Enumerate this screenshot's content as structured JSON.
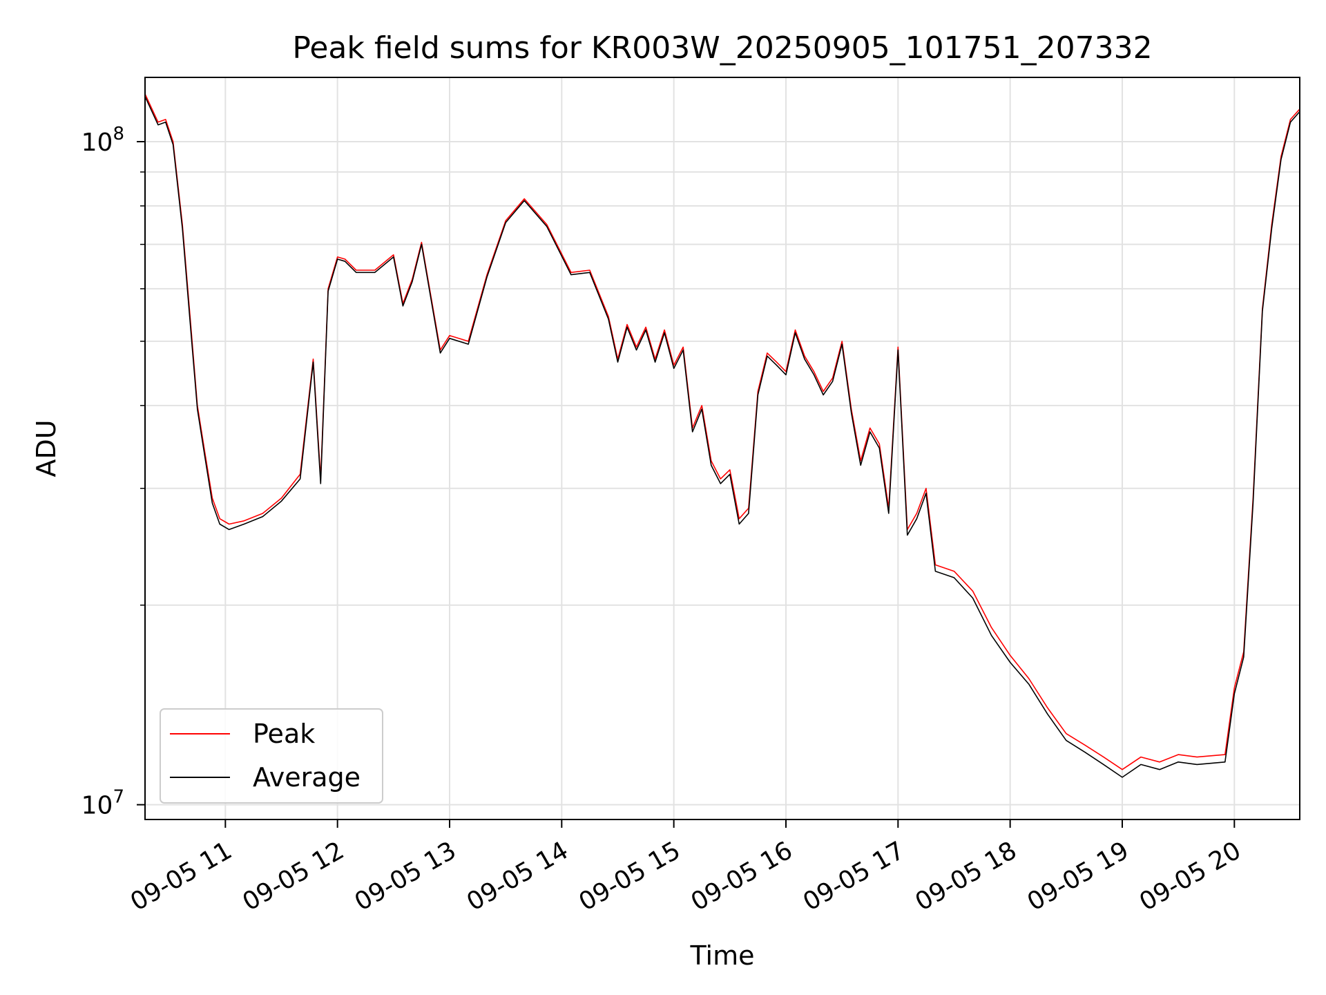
{
  "chart_data": {
    "type": "line",
    "title": "Peak field sums for KR003W_20250905_101751_207332",
    "xlabel": "Time",
    "ylabel": "ADU",
    "y_scale": "log",
    "ylim": [
      9500000,
      125000000
    ],
    "xlim": [
      "2025-09-05 10:17",
      "2025-09-05 20:35"
    ],
    "grid": true,
    "legend_position": "lower-left",
    "x_ticks": [
      {
        "t": "2025-09-05 11:00",
        "label": "09-05 11"
      },
      {
        "t": "2025-09-05 12:00",
        "label": "09-05 12"
      },
      {
        "t": "2025-09-05 13:00",
        "label": "09-05 13"
      },
      {
        "t": "2025-09-05 14:00",
        "label": "09-05 14"
      },
      {
        "t": "2025-09-05 15:00",
        "label": "09-05 15"
      },
      {
        "t": "2025-09-05 16:00",
        "label": "09-05 16"
      },
      {
        "t": "2025-09-05 17:00",
        "label": "09-05 17"
      },
      {
        "t": "2025-09-05 18:00",
        "label": "09-05 18"
      },
      {
        "t": "2025-09-05 19:00",
        "label": "09-05 19"
      },
      {
        "t": "2025-09-05 20:00",
        "label": "09-05 20"
      }
    ],
    "y_major_ticks": [
      {
        "value": 10000000,
        "base": "10",
        "exp": "7"
      },
      {
        "value": 100000000,
        "base": "10",
        "exp": "8"
      }
    ],
    "y_minor_ticks": [
      20000000,
      30000000,
      40000000,
      50000000,
      60000000,
      70000000,
      80000000,
      90000000
    ],
    "series": [
      {
        "name": "Peak",
        "color": "#ff0000",
        "x": [
          "2025-09-05 10:17",
          "2025-09-05 10:24",
          "2025-09-05 10:28",
          "2025-09-05 10:32",
          "2025-09-05 10:37",
          "2025-09-05 10:41",
          "2025-09-05 10:45",
          "2025-09-05 10:49",
          "2025-09-05 10:53",
          "2025-09-05 10:57",
          "2025-09-05 11:02",
          "2025-09-05 11:10",
          "2025-09-05 11:20",
          "2025-09-05 11:30",
          "2025-09-05 11:40",
          "2025-09-05 11:47",
          "2025-09-05 11:51",
          "2025-09-05 11:55",
          "2025-09-05 12:00",
          "2025-09-05 12:04",
          "2025-09-05 12:10",
          "2025-09-05 12:20",
          "2025-09-05 12:30",
          "2025-09-05 12:35",
          "2025-09-05 12:40",
          "2025-09-05 12:45",
          "2025-09-05 12:55",
          "2025-09-05 13:00",
          "2025-09-05 13:10",
          "2025-09-05 13:20",
          "2025-09-05 13:30",
          "2025-09-05 13:40",
          "2025-09-05 13:52",
          "2025-09-05 14:05",
          "2025-09-05 14:15",
          "2025-09-05 14:25",
          "2025-09-05 14:30",
          "2025-09-05 14:35",
          "2025-09-05 14:40",
          "2025-09-05 14:45",
          "2025-09-05 14:50",
          "2025-09-05 14:55",
          "2025-09-05 15:00",
          "2025-09-05 15:05",
          "2025-09-05 15:10",
          "2025-09-05 15:15",
          "2025-09-05 15:20",
          "2025-09-05 15:25",
          "2025-09-05 15:30",
          "2025-09-05 15:35",
          "2025-09-05 15:40",
          "2025-09-05 15:45",
          "2025-09-05 15:50",
          "2025-09-05 15:55",
          "2025-09-05 16:00",
          "2025-09-05 16:05",
          "2025-09-05 16:10",
          "2025-09-05 16:15",
          "2025-09-05 16:20",
          "2025-09-05 16:25",
          "2025-09-05 16:30",
          "2025-09-05 16:35",
          "2025-09-05 16:40",
          "2025-09-05 16:45",
          "2025-09-05 16:50",
          "2025-09-05 16:55",
          "2025-09-05 17:00",
          "2025-09-05 17:05",
          "2025-09-05 17:10",
          "2025-09-05 17:15",
          "2025-09-05 17:20",
          "2025-09-05 17:30",
          "2025-09-05 17:40",
          "2025-09-05 17:50",
          "2025-09-05 18:00",
          "2025-09-05 18:10",
          "2025-09-05 18:20",
          "2025-09-05 18:30",
          "2025-09-05 18:40",
          "2025-09-05 18:50",
          "2025-09-05 19:00",
          "2025-09-05 19:10",
          "2025-09-05 19:20",
          "2025-09-05 19:30",
          "2025-09-05 19:40",
          "2025-09-05 19:55",
          "2025-09-05 20:00",
          "2025-09-05 20:05",
          "2025-09-05 20:10",
          "2025-09-05 20:15",
          "2025-09-05 20:20",
          "2025-09-05 20:25",
          "2025-09-05 20:30",
          "2025-09-05 20:35"
        ],
        "y": [
          118000000,
          107000000,
          108000000,
          100000000,
          75000000,
          55000000,
          40000000,
          34000000,
          29000000,
          27000000,
          26500000,
          26800000,
          27500000,
          29000000,
          31500000,
          47000000,
          31000000,
          60000000,
          67000000,
          66500000,
          64000000,
          64000000,
          67500000,
          57000000,
          62000000,
          70500000,
          48500000,
          51000000,
          50000000,
          63000000,
          76000000,
          82000000,
          75000000,
          63500000,
          64000000,
          54500000,
          47000000,
          53000000,
          49000000,
          52500000,
          47000000,
          52000000,
          46000000,
          49000000,
          37000000,
          40000000,
          33000000,
          31000000,
          32000000,
          27000000,
          28000000,
          42000000,
          48000000,
          46500000,
          45000000,
          52000000,
          47500000,
          45000000,
          42000000,
          44000000,
          50000000,
          39500000,
          33000000,
          37000000,
          35000000,
          28000000,
          49000000,
          26000000,
          27500000,
          30000000,
          23000000,
          22500000,
          21000000,
          18500000,
          16800000,
          15500000,
          14000000,
          12800000,
          12300000,
          11800000,
          11300000,
          11800000,
          11600000,
          11900000,
          11800000,
          11900000,
          15000000,
          17000000,
          29000000,
          56000000,
          75000000,
          95000000,
          108000000,
          112000000
        ]
      },
      {
        "name": "Average",
        "color": "#000000",
        "x": [
          "2025-09-05 10:17",
          "2025-09-05 10:24",
          "2025-09-05 10:28",
          "2025-09-05 10:32",
          "2025-09-05 10:37",
          "2025-09-05 10:41",
          "2025-09-05 10:45",
          "2025-09-05 10:49",
          "2025-09-05 10:53",
          "2025-09-05 10:57",
          "2025-09-05 11:02",
          "2025-09-05 11:10",
          "2025-09-05 11:20",
          "2025-09-05 11:30",
          "2025-09-05 11:40",
          "2025-09-05 11:47",
          "2025-09-05 11:51",
          "2025-09-05 11:55",
          "2025-09-05 12:00",
          "2025-09-05 12:04",
          "2025-09-05 12:10",
          "2025-09-05 12:20",
          "2025-09-05 12:30",
          "2025-09-05 12:35",
          "2025-09-05 12:40",
          "2025-09-05 12:45",
          "2025-09-05 12:55",
          "2025-09-05 13:00",
          "2025-09-05 13:10",
          "2025-09-05 13:20",
          "2025-09-05 13:30",
          "2025-09-05 13:40",
          "2025-09-05 13:52",
          "2025-09-05 14:05",
          "2025-09-05 14:15",
          "2025-09-05 14:25",
          "2025-09-05 14:30",
          "2025-09-05 14:35",
          "2025-09-05 14:40",
          "2025-09-05 14:45",
          "2025-09-05 14:50",
          "2025-09-05 14:55",
          "2025-09-05 15:00",
          "2025-09-05 15:05",
          "2025-09-05 15:10",
          "2025-09-05 15:15",
          "2025-09-05 15:20",
          "2025-09-05 15:25",
          "2025-09-05 15:30",
          "2025-09-05 15:35",
          "2025-09-05 15:40",
          "2025-09-05 15:45",
          "2025-09-05 15:50",
          "2025-09-05 15:55",
          "2025-09-05 16:00",
          "2025-09-05 16:05",
          "2025-09-05 16:10",
          "2025-09-05 16:15",
          "2025-09-05 16:20",
          "2025-09-05 16:25",
          "2025-09-05 16:30",
          "2025-09-05 16:35",
          "2025-09-05 16:40",
          "2025-09-05 16:45",
          "2025-09-05 16:50",
          "2025-09-05 16:55",
          "2025-09-05 17:00",
          "2025-09-05 17:05",
          "2025-09-05 17:10",
          "2025-09-05 17:15",
          "2025-09-05 17:20",
          "2025-09-05 17:30",
          "2025-09-05 17:40",
          "2025-09-05 17:50",
          "2025-09-05 18:00",
          "2025-09-05 18:10",
          "2025-09-05 18:20",
          "2025-09-05 18:30",
          "2025-09-05 18:40",
          "2025-09-05 18:50",
          "2025-09-05 19:00",
          "2025-09-05 19:10",
          "2025-09-05 19:20",
          "2025-09-05 19:30",
          "2025-09-05 19:40",
          "2025-09-05 19:55",
          "2025-09-05 20:00",
          "2025-09-05 20:05",
          "2025-09-05 20:10",
          "2025-09-05 20:15",
          "2025-09-05 20:20",
          "2025-09-05 20:25",
          "2025-09-05 20:30",
          "2025-09-05 20:35"
        ],
        "y": [
          117000000,
          106000000,
          107000000,
          99000000,
          74000000,
          54000000,
          39500000,
          33500000,
          28500000,
          26500000,
          26000000,
          26500000,
          27200000,
          28700000,
          31000000,
          46500000,
          30500000,
          59500000,
          66500000,
          66000000,
          63500000,
          63500000,
          67000000,
          56500000,
          61500000,
          70000000,
          48000000,
          50500000,
          49500000,
          62500000,
          75500000,
          81500000,
          74500000,
          63000000,
          63500000,
          54000000,
          46500000,
          52500000,
          48500000,
          52000000,
          46500000,
          51500000,
          45500000,
          48500000,
          36500000,
          39500000,
          32500000,
          30500000,
          31500000,
          26500000,
          27500000,
          41500000,
          47500000,
          46000000,
          44500000,
          51500000,
          47000000,
          44500000,
          41500000,
          43500000,
          49500000,
          39000000,
          32500000,
          36500000,
          34500000,
          27500000,
          48500000,
          25500000,
          27000000,
          29500000,
          22500000,
          22000000,
          20500000,
          18000000,
          16400000,
          15200000,
          13700000,
          12500000,
          12000000,
          11500000,
          11000000,
          11500000,
          11300000,
          11600000,
          11500000,
          11600000,
          14700000,
          16700000,
          28500000,
          55500000,
          74000000,
          94000000,
          107000000,
          111000000
        ]
      }
    ]
  }
}
